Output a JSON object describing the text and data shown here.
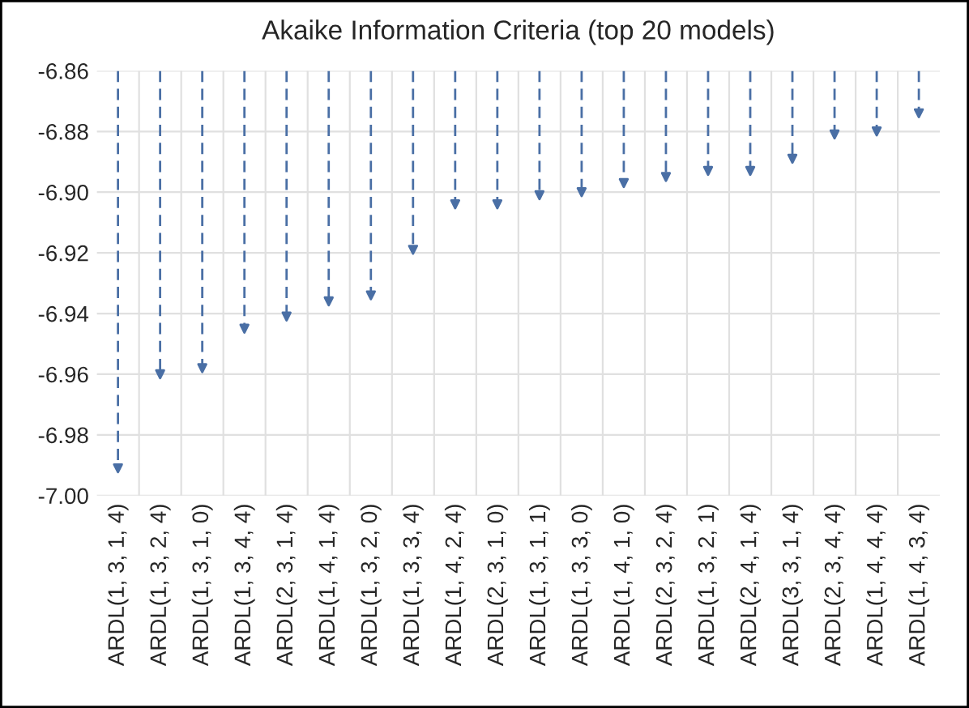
{
  "chart_data": {
    "type": "lollipop",
    "title": "Akaike Information Criteria (top 20 models)",
    "categories": [
      "ARDL(1, 3, 1, 4)",
      "ARDL(1, 3, 2, 4)",
      "ARDL(1, 3, 1, 0)",
      "ARDL(1, 3, 4, 4)",
      "ARDL(2, 3, 1, 4)",
      "ARDL(1, 4, 1, 4)",
      "ARDL(1, 3, 2, 0)",
      "ARDL(1, 3, 3, 4)",
      "ARDL(1, 4, 2, 4)",
      "ARDL(2, 3, 1, 0)",
      "ARDL(1, 3, 1, 1)",
      "ARDL(1, 3, 3, 0)",
      "ARDL(1, 4, 1, 0)",
      "ARDL(2, 3, 2, 4)",
      "ARDL(1, 3, 2, 1)",
      "ARDL(2, 4, 1, 4)",
      "ARDL(3, 3, 1, 4)",
      "ARDL(2, 3, 4, 4)",
      "ARDL(1, 4, 4, 4)",
      "ARDL(1, 4, 3, 4)"
    ],
    "values": [
      -6.991,
      -6.96,
      -6.958,
      -6.945,
      -6.941,
      -6.936,
      -6.934,
      -6.919,
      -6.904,
      -6.904,
      -6.901,
      -6.9,
      -6.897,
      -6.895,
      -6.893,
      -6.893,
      -6.889,
      -6.881,
      -6.88,
      -6.874
    ],
    "color": "#4a6fa5",
    "marker": "triangle",
    "line_style": "dashed",
    "ylim": [
      -7.0,
      -6.86
    ],
    "yticks": [
      {
        "value": -7.0,
        "label": "-7.00"
      },
      {
        "value": -6.98,
        "label": "-6.98"
      },
      {
        "value": -6.96,
        "label": "-6.96"
      },
      {
        "value": -6.94,
        "label": "-6.94"
      },
      {
        "value": -6.92,
        "label": "-6.92"
      },
      {
        "value": -6.9,
        "label": "-6.90"
      },
      {
        "value": -6.88,
        "label": "-6.88"
      },
      {
        "value": -6.86,
        "label": "-6.86"
      }
    ],
    "grid": true
  }
}
